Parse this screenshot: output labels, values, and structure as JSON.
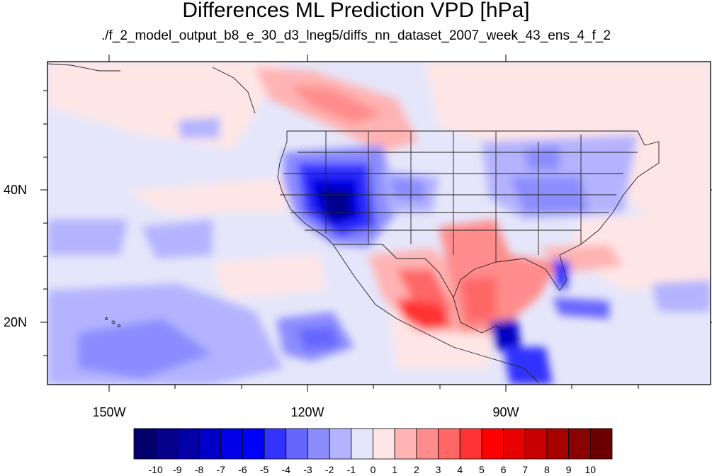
{
  "title": "Differences ML Prediction VPD [hPa]",
  "subtitle": "./f_2_model_output_b8_e_30_d3_lneg5/diffs_nn_dataset_2007_week_43_ens_4_f_2",
  "map": {
    "lon_labels": [
      "150W",
      "120W",
      "90W"
    ],
    "lat_labels": [
      "40N",
      "20N"
    ]
  },
  "colorbar": {
    "labels": [
      "-10",
      "-9",
      "-8",
      "-7",
      "-6",
      "-5",
      "-4",
      "-3",
      "-2",
      "-1",
      "0",
      "1",
      "2",
      "3",
      "4",
      "5",
      "6",
      "7",
      "8",
      "9",
      "10"
    ],
    "colors": [
      "#03006b",
      "#06008b",
      "#0300a8",
      "#0000c8",
      "#0000e6",
      "#0000ff",
      "#3333ff",
      "#6666ff",
      "#8c8cff",
      "#b3b3ff",
      "#e6e6fa",
      "#ffe6e6",
      "#ffb3b3",
      "#ff8c8c",
      "#ff6666",
      "#ff3333",
      "#ff0000",
      "#e60000",
      "#c80000",
      "#a80000",
      "#8b0000",
      "#6b0000"
    ]
  }
}
